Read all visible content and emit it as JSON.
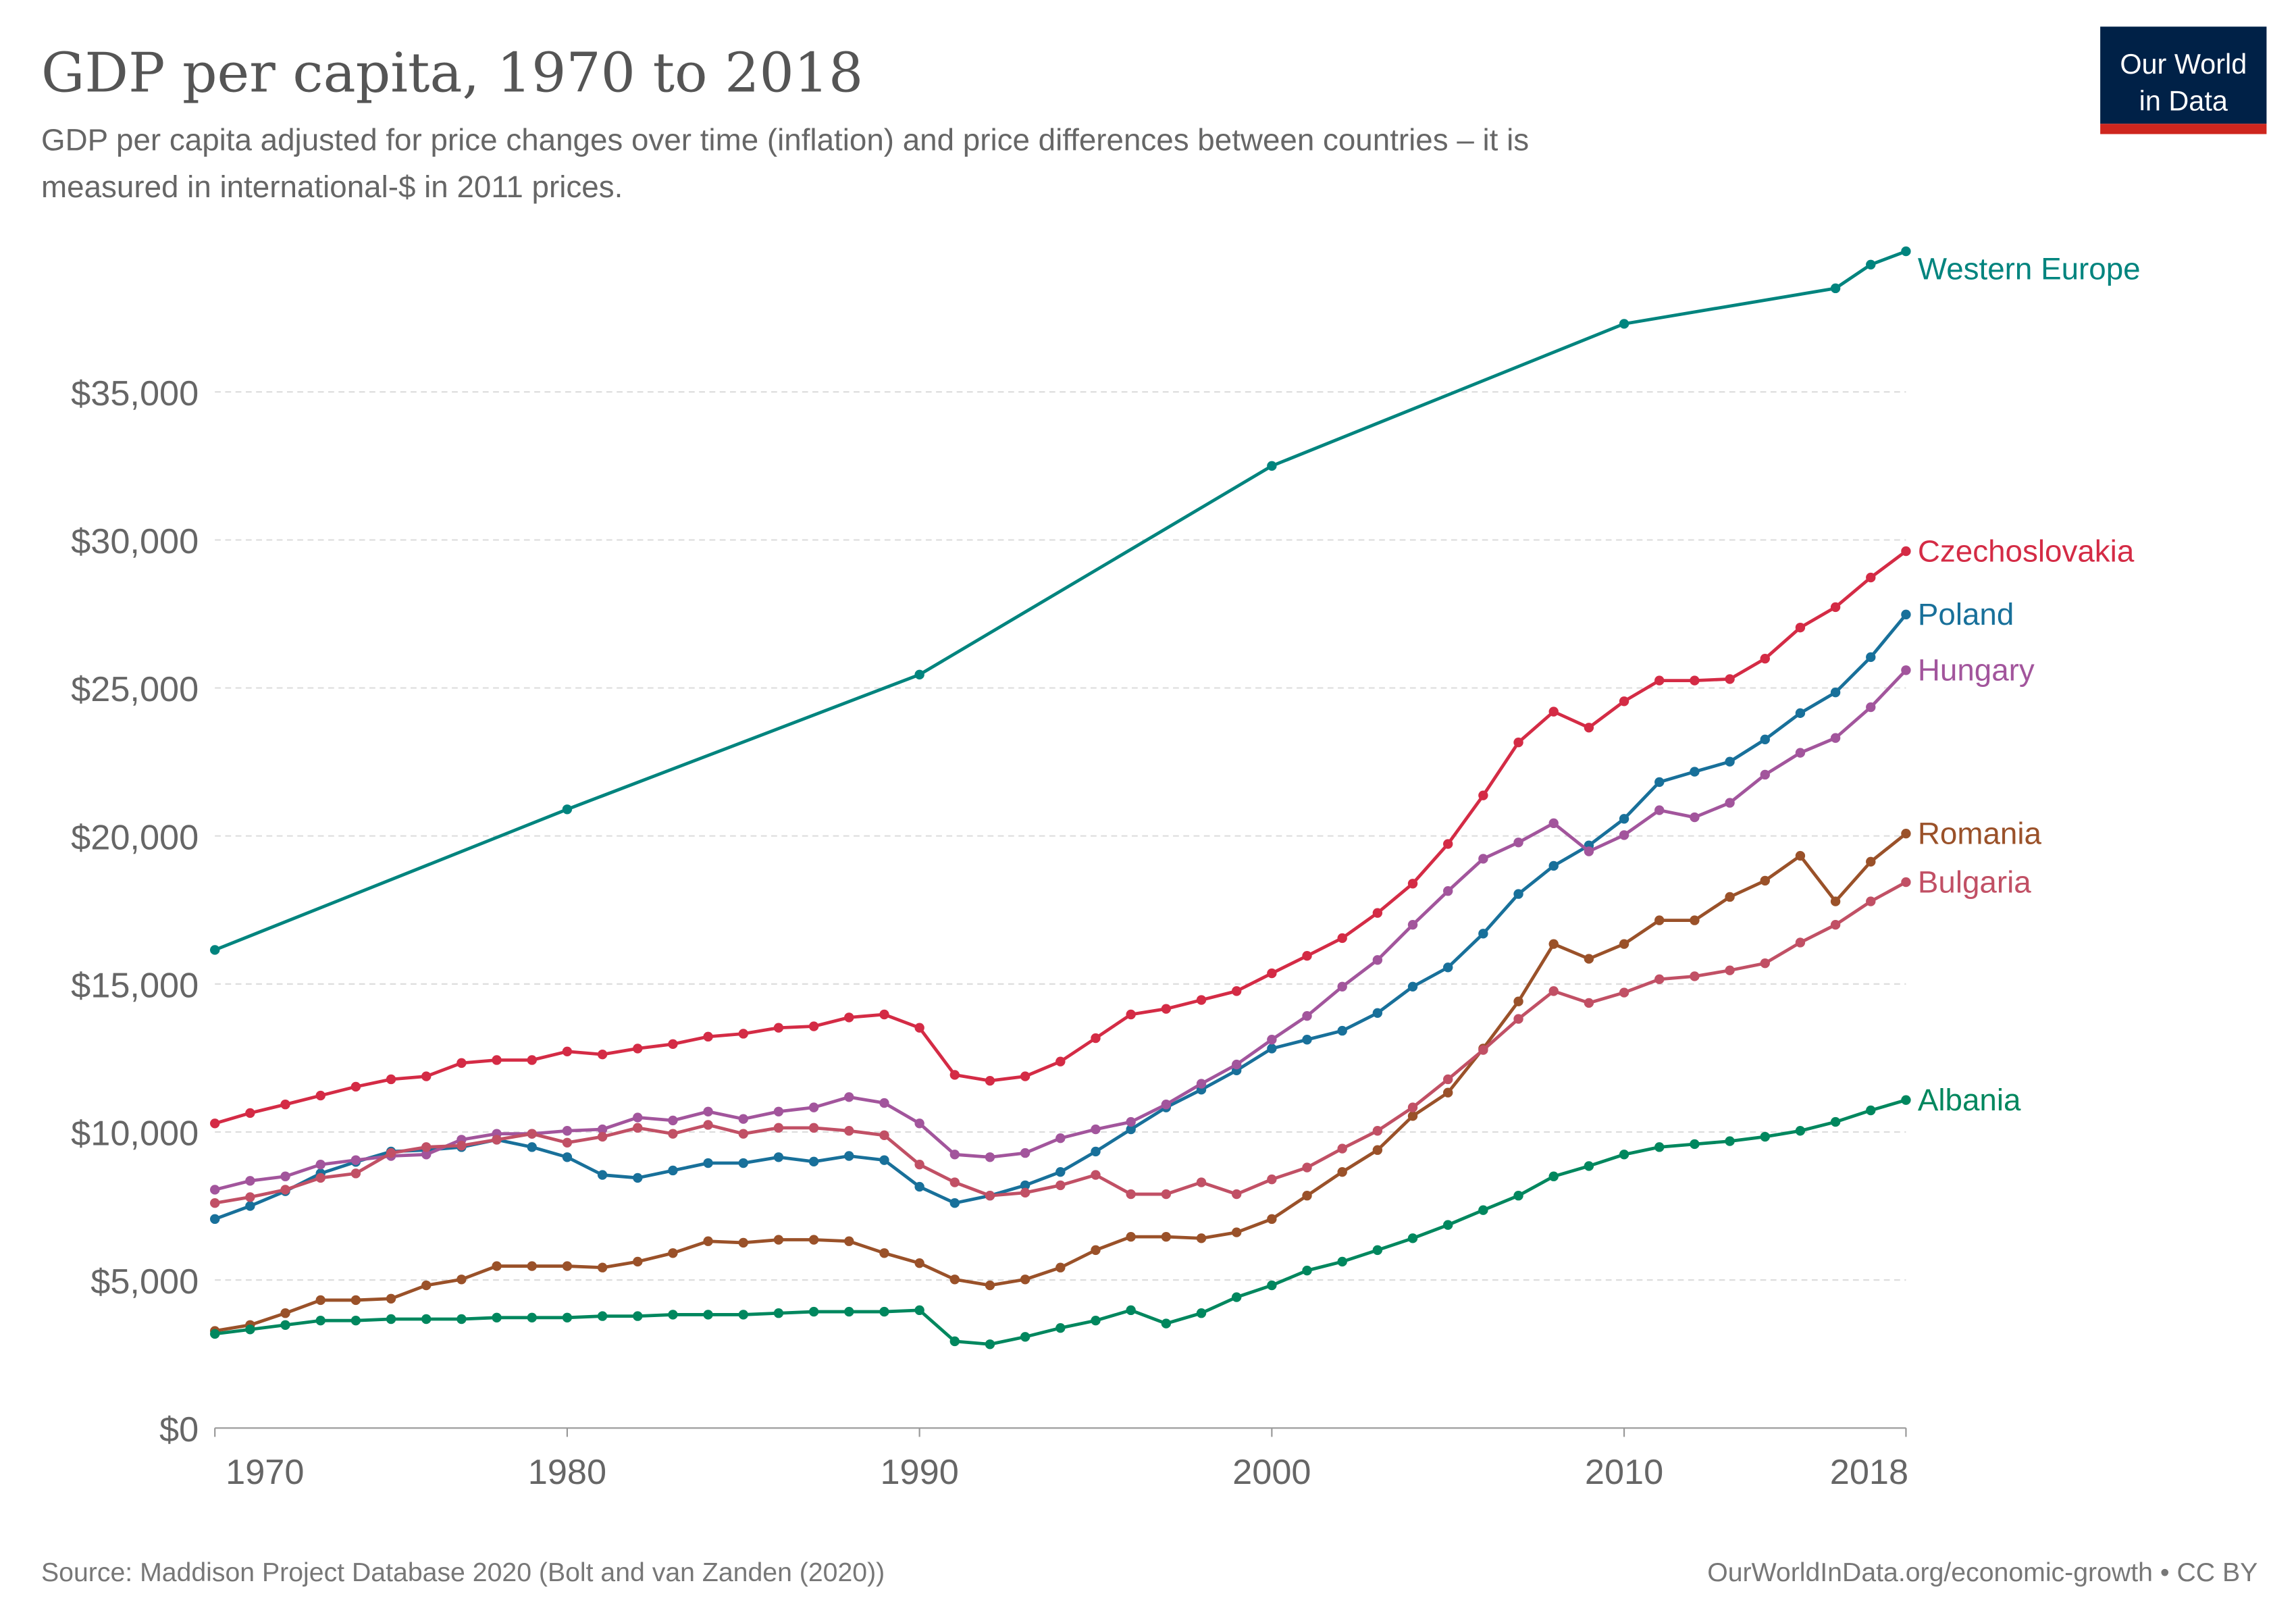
{
  "header": {
    "title": "GDP per capita, 1970 to 2018",
    "subtitle_line1": "GDP per capita adjusted for price changes over time (inflation) and price differences between countries – it is",
    "subtitle_line2": "measured in international-$ in 2011 prices."
  },
  "logo": {
    "line1": "Our World",
    "line2": "in Data",
    "bg_color": "#002147",
    "bar_color": "#ce261e"
  },
  "footer": {
    "source": "Source: Maddison Project Database 2020 (Bolt and van Zanden (2020))",
    "url": "OurWorldInData.org/economic-growth • CC BY"
  },
  "chart_data": {
    "type": "line",
    "title": "GDP per capita, 1970 to 2018",
    "xlim": [
      1970,
      2018
    ],
    "ylim": [
      0,
      40000
    ],
    "grid": "horizontal dashed",
    "legend": "right (labels at line ends)",
    "x_ticks": [
      "1970",
      "1980",
      "1990",
      "2000",
      "2010",
      "2018"
    ],
    "y_ticks": [
      "$0",
      "$5,000",
      "$10,000",
      "$15,000",
      "$20,000",
      "$25,000",
      "$30,000",
      "$35,000"
    ],
    "series": [
      {
        "name": "Western Europe",
        "color": "#00847e",
        "x": [
          1970,
          1980,
          1990,
          2000,
          2010,
          2016,
          2017,
          2018
        ],
        "values": [
          16150,
          20900,
          25450,
          32500,
          37300,
          38500,
          39300,
          39750
        ]
      },
      {
        "name": "Czechoslovakia",
        "color": "#d42b45",
        "x_start": 1970,
        "values": [
          10290,
          10640,
          10930,
          11230,
          11530,
          11780,
          11880,
          12330,
          12430,
          12430,
          12720,
          12620,
          12820,
          12970,
          13220,
          13320,
          13520,
          13570,
          13870,
          13970,
          13520,
          11930,
          11730,
          11880,
          12380,
          13170,
          13970,
          14160,
          14460,
          14760,
          15360,
          15950,
          16550,
          17400,
          18390,
          19730,
          21370,
          23160,
          24200,
          23660,
          24550,
          25250,
          25250,
          25300,
          25990,
          27040,
          27730,
          28730,
          29620
        ]
      },
      {
        "name": "Poland",
        "color": "#18709a",
        "x_start": 1970,
        "values": [
          7060,
          7500,
          8000,
          8600,
          8990,
          9340,
          9390,
          9490,
          9740,
          9490,
          9150,
          8550,
          8450,
          8700,
          8950,
          8950,
          9150,
          9000,
          9190,
          9050,
          8150,
          7600,
          7850,
          8200,
          8650,
          9340,
          10090,
          10830,
          11430,
          12080,
          12820,
          13120,
          13420,
          14020,
          14910,
          15560,
          16700,
          18040,
          18990,
          19680,
          20580,
          21820,
          22170,
          22510,
          23260,
          24150,
          24850,
          26040,
          27480
        ]
      },
      {
        "name": "Hungary",
        "color": "#a2559c",
        "x_start": 1970,
        "values": [
          8050,
          8350,
          8500,
          8900,
          9050,
          9190,
          9240,
          9740,
          9940,
          9940,
          10040,
          10090,
          10490,
          10390,
          10690,
          10440,
          10690,
          10830,
          11180,
          10980,
          10290,
          9240,
          9150,
          9290,
          9790,
          10090,
          10340,
          10930,
          11630,
          12280,
          13120,
          13920,
          14910,
          15810,
          17000,
          18140,
          19230,
          19780,
          20430,
          19480,
          20030,
          20870,
          20630,
          21120,
          22070,
          22810,
          23310,
          24350,
          25600
        ]
      },
      {
        "name": "Romania",
        "color": "#9a5129",
        "x_start": 1970,
        "values": [
          3280,
          3480,
          3880,
          4320,
          4320,
          4370,
          4820,
          5020,
          5470,
          5470,
          5470,
          5420,
          5620,
          5910,
          6310,
          6260,
          6360,
          6360,
          6310,
          5910,
          5570,
          5020,
          4820,
          5020,
          5420,
          6010,
          6460,
          6460,
          6410,
          6610,
          7060,
          7850,
          8650,
          9390,
          10540,
          11330,
          12820,
          14410,
          16350,
          15850,
          16350,
          17150,
          17150,
          17940,
          18490,
          19330,
          17790,
          19130,
          20080
        ]
      },
      {
        "name": "Bulgaria",
        "color": "#c15065",
        "x_start": 1970,
        "values": [
          7600,
          7800,
          8050,
          8450,
          8600,
          9290,
          9490,
          9540,
          9740,
          9940,
          9640,
          9840,
          10140,
          9940,
          10240,
          9940,
          10140,
          10140,
          10040,
          9890,
          8900,
          8300,
          7850,
          7950,
          8200,
          8550,
          7900,
          7900,
          8300,
          7900,
          8400,
          8800,
          9440,
          10040,
          10830,
          11780,
          12770,
          13820,
          14760,
          14360,
          14710,
          15160,
          15260,
          15460,
          15700,
          16400,
          17000,
          17790,
          18440
        ]
      },
      {
        "name": "Albania",
        "color": "#00875e",
        "x_start": 1970,
        "values": [
          3180,
          3330,
          3480,
          3630,
          3630,
          3680,
          3680,
          3680,
          3730,
          3730,
          3730,
          3780,
          3780,
          3830,
          3830,
          3830,
          3880,
          3930,
          3930,
          3930,
          3980,
          2930,
          2830,
          3080,
          3380,
          3630,
          3980,
          3530,
          3880,
          4420,
          4820,
          5320,
          5620,
          6010,
          6410,
          6860,
          7360,
          7850,
          8500,
          8850,
          9240,
          9490,
          9590,
          9690,
          9840,
          10040,
          10340,
          10730,
          11080
        ]
      }
    ]
  }
}
